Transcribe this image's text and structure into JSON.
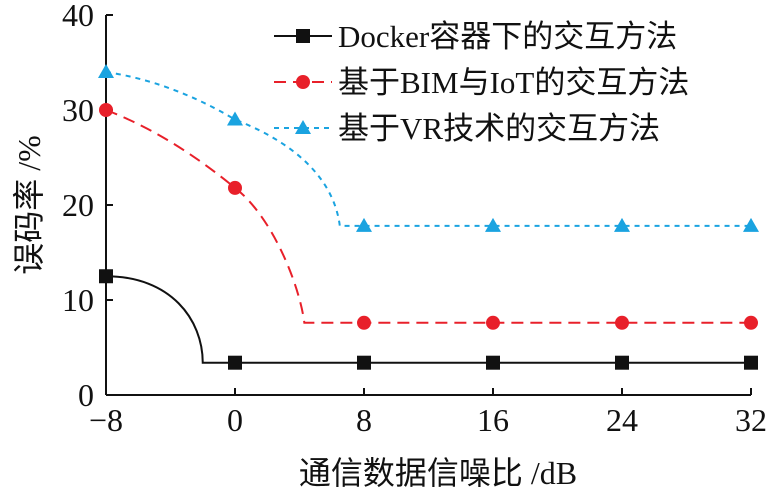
{
  "chart_data": {
    "type": "line",
    "title": "",
    "xlabel": "通信数据信噪比 /dB",
    "ylabel": "误码率 /%",
    "x": [
      -8,
      0,
      8,
      16,
      24,
      32
    ],
    "x_ticks": [
      "−8",
      "0",
      "8",
      "16",
      "24",
      "32"
    ],
    "y_ticks": [
      "0",
      "10",
      "20",
      "30",
      "40"
    ],
    "xlim": [
      -8,
      32
    ],
    "ylim": [
      0,
      40
    ],
    "grid": false,
    "legend_position": "top-right",
    "series": [
      {
        "name": "Docker容器下的交互方法",
        "values": [
          12.5,
          3.4,
          3.4,
          3.4,
          3.4,
          3.4
        ],
        "color": "#111111",
        "marker": "square",
        "line": "solid"
      },
      {
        "name": "基于BIM与IoT的交互方法",
        "values": [
          30,
          21.8,
          7.6,
          7.6,
          7.6,
          7.6
        ],
        "color": "#e8202a",
        "marker": "circle",
        "line": "dashed"
      },
      {
        "name": "基于VR技术的交互方法",
        "values": [
          34,
          29,
          17.8,
          17.8,
          17.8,
          17.8
        ],
        "color": "#1aa3e0",
        "marker": "triangle",
        "line": "dotted"
      }
    ]
  }
}
